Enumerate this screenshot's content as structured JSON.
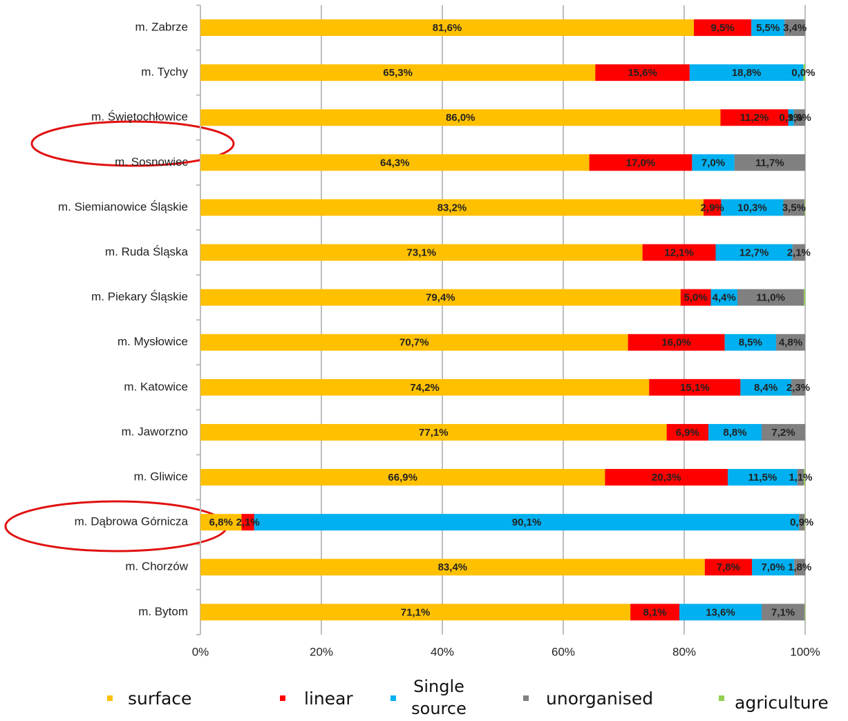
{
  "chart_data": {
    "type": "stacked_barh",
    "categories": [
      "m. Zabrze",
      "m. Tychy",
      "m. Świętochłowice",
      "m. Sosnowiec",
      "m. Siemianowice Śląskie",
      "m. Ruda Śląska",
      "m. Piekary Śląskie",
      "m. Mysłowice",
      "m. Katowice",
      "m. Jaworzno",
      "m. Gliwice",
      "m. Dąbrowa Górnicza",
      "m. Chorzów",
      "m. Bytom"
    ],
    "series": [
      {
        "name": "surface",
        "color": "#ffc000",
        "values": [
          81.6,
          65.3,
          86.0,
          64.3,
          83.2,
          73.1,
          79.4,
          70.7,
          74.2,
          77.1,
          66.9,
          6.8,
          83.4,
          71.1
        ],
        "value_labels": [
          "81,6%",
          "65,3%",
          "86,0%",
          "64,3%",
          "83,2%",
          "73,1%",
          "79,4%",
          "70,7%",
          "74,2%",
          "77,1%",
          "66,9%",
          "6,8%",
          "83,4%",
          "71,1%"
        ]
      },
      {
        "name": "linear",
        "color": "#ff0000",
        "values": [
          9.5,
          15.6,
          11.2,
          17.0,
          2.9,
          12.1,
          5.0,
          16.0,
          15.1,
          6.9,
          20.3,
          2.1,
          7.8,
          8.1
        ],
        "value_labels": [
          "9,5%",
          "15,6%",
          "11,2%",
          "17,0%",
          "2,9%",
          "12,1%",
          "5,0%",
          "16,0%",
          "15,1%",
          "6,9%",
          "20,3%",
          "2,1%",
          "7,8%",
          "8,1%"
        ]
      },
      {
        "name": "Single source",
        "color": "#00b0f0",
        "values": [
          5.5,
          18.8,
          0.9,
          7.0,
          10.3,
          12.7,
          4.4,
          8.5,
          8.4,
          8.8,
          11.5,
          90.1,
          7.0,
          13.6
        ],
        "value_labels": [
          "5,5%",
          "18,8%",
          "0,9%",
          "7,0%",
          "10,3%",
          "12,7%",
          "4,4%",
          "8,5%",
          "8,4%",
          "8,8%",
          "11,5%",
          "90,1%",
          "7,0%",
          "13,6%"
        ]
      },
      {
        "name": "unorganised",
        "color": "#808080",
        "values": [
          3.4,
          0.0,
          1.9,
          11.7,
          3.5,
          2.1,
          11.0,
          4.8,
          2.3,
          7.2,
          1.1,
          0.9,
          1.8,
          7.1
        ],
        "value_labels": [
          "3,4%",
          "0,0%",
          "1,9%",
          "11,7%",
          "3,5%",
          "2,1%",
          "11,0%",
          "4,8%",
          "2,3%",
          "7,2%",
          "1,1%",
          "0,9%",
          "1,8%",
          "7,1%"
        ]
      },
      {
        "name": "agriculture",
        "color": "#92d050",
        "values": [
          0,
          0.3,
          0,
          0,
          0.1,
          0,
          0.2,
          0,
          0,
          0,
          0.2,
          0.1,
          0,
          0.1
        ]
      }
    ],
    "xlim": [
      0,
      100
    ],
    "xticks": [
      {
        "value": 0,
        "label": "0%"
      },
      {
        "value": 20,
        "label": "20%"
      },
      {
        "value": 40,
        "label": "40%"
      },
      {
        "value": 60,
        "label": "60%"
      },
      {
        "value": 80,
        "label": "80%"
      },
      {
        "value": 100,
        "label": "100%"
      }
    ],
    "grid": true
  }
}
